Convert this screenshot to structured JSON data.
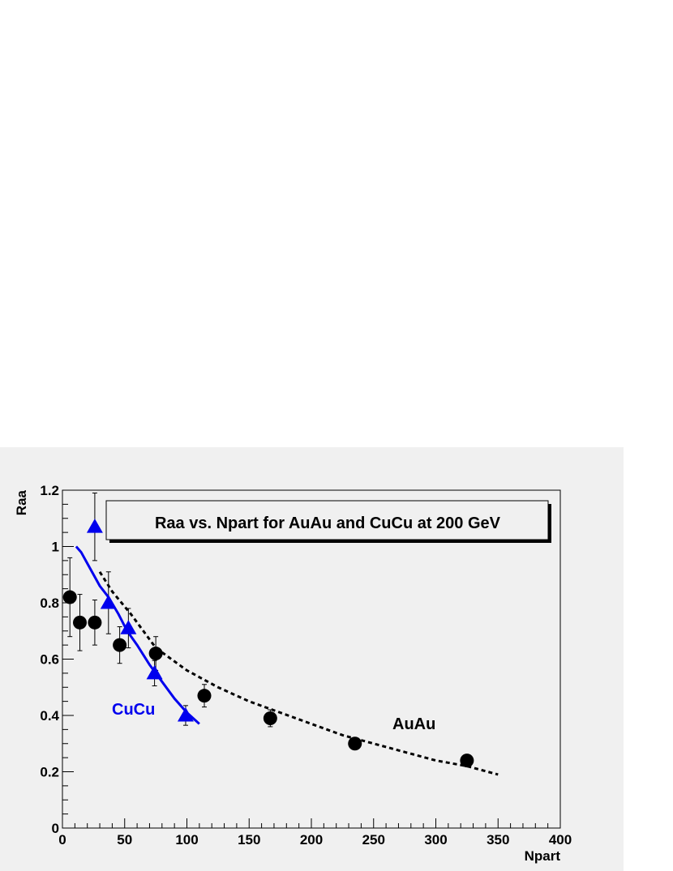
{
  "chart_data": {
    "type": "scatter",
    "title": "Raa vs. Npart for AuAu and CuCu at 200 GeV",
    "xlabel": "Npart",
    "ylabel": "Raa",
    "xlim": [
      0,
      400
    ],
    "ylim": [
      0,
      1.2
    ],
    "x_ticks": [
      "0",
      "50",
      "100",
      "150",
      "200",
      "250",
      "300",
      "350",
      "400"
    ],
    "y_ticks": [
      "0",
      "0.2",
      "0.4",
      "0.6",
      "0.8",
      "1",
      "1.2"
    ],
    "grid": false,
    "colors": {
      "cucu": "#0000ee",
      "auau": "#000000",
      "panel": "#f0f0f0"
    },
    "series": [
      {
        "marker": "circle",
        "color": "#000000",
        "points": [
          {
            "x": 6,
            "y": 0.82,
            "err": 0.14
          },
          {
            "x": 14,
            "y": 0.73,
            "err": 0.1
          },
          {
            "x": 26,
            "y": 0.73,
            "err": 0.08
          },
          {
            "x": 46,
            "y": 0.65,
            "err": 0.065
          },
          {
            "x": 75,
            "y": 0.62,
            "err": 0.06
          },
          {
            "x": 114,
            "y": 0.47,
            "err": 0.04
          },
          {
            "x": 167,
            "y": 0.39,
            "err": 0.03
          },
          {
            "x": 235,
            "y": 0.3,
            "err": 0.02
          },
          {
            "x": 325,
            "y": 0.24,
            "err": 0.015
          }
        ]
      },
      {
        "marker": "triangle",
        "color": "#0000ee",
        "points": [
          {
            "x": 26,
            "y": 1.07,
            "err": 0.12
          },
          {
            "x": 37,
            "y": 0.8,
            "err": 0.11
          },
          {
            "x": 53,
            "y": 0.71,
            "err": 0.07
          },
          {
            "x": 74,
            "y": 0.55,
            "err": 0.045
          },
          {
            "x": 99,
            "y": 0.4,
            "err": 0.035
          }
        ]
      },
      {
        "style": "solid-line",
        "color": "#0000ee",
        "x": [
          11,
          15,
          20,
          25,
          30,
          37,
          45,
          52,
          60,
          70,
          80,
          90,
          100,
          110
        ],
        "y": [
          1.0,
          0.98,
          0.94,
          0.9,
          0.86,
          0.82,
          0.76,
          0.7,
          0.65,
          0.58,
          0.52,
          0.46,
          0.41,
          0.37
        ]
      },
      {
        "style": "dashed-line",
        "color": "#000000",
        "x": [
          30,
          40,
          55,
          75,
          100,
          125,
          150,
          175,
          200,
          225,
          250,
          275,
          300,
          325,
          350
        ],
        "y": [
          0.91,
          0.84,
          0.76,
          0.64,
          0.56,
          0.5,
          0.45,
          0.41,
          0.37,
          0.33,
          0.3,
          0.27,
          0.24,
          0.22,
          0.19
        ]
      }
    ],
    "annotations": [
      {
        "text": "CuCu",
        "color": "#0000ee",
        "x": 40,
        "y": 0.4
      },
      {
        "text": "AuAu",
        "color": "#000000",
        "x": 265,
        "y": 0.36
      }
    ]
  }
}
